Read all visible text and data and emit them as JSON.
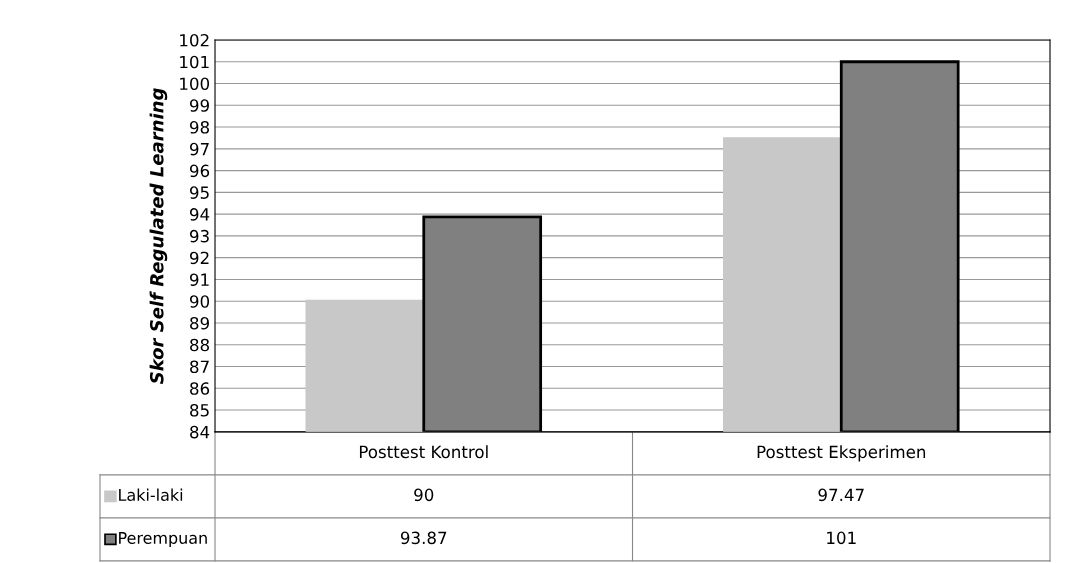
{
  "chart_data": {
    "type": "bar",
    "ylabel": "Skor Self Regulated Learning",
    "legend": "bottom left",
    "categories": [
      "Posttest Kontrol",
      "Posttest Eksperimen"
    ],
    "series": [
      {
        "name": "Laki-laki",
        "color": "#c8c8c8",
        "values": [
          90,
          97.47
        ]
      },
      {
        "name": "Perempuan",
        "color": "#808080",
        "values": [
          93.87,
          101
        ]
      }
    ],
    "ylim": [
      84,
      102
    ],
    "yticks": [
      84,
      85,
      86,
      87,
      88,
      89,
      90,
      91,
      92,
      93,
      94,
      95,
      96,
      97,
      98,
      99,
      100,
      101,
      102
    ],
    "grid": "y",
    "data_labels": true
  }
}
